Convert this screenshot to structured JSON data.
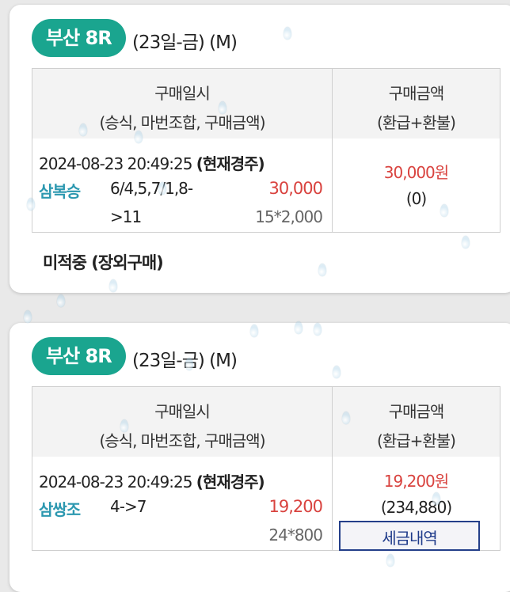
{
  "tickets": [
    {
      "race": "부산 8R",
      "race_info": "(23일-금) (M)",
      "header": {
        "col1_line1": "구매일시",
        "col1_line2": "(승식, 마번조합, 구매금액)",
        "col2_line1": "구매금액",
        "col2_line2": "(환급+환불)"
      },
      "datetime": "2024-08-23 20:49:25",
      "race_state": "(현재경주)",
      "bet_type": "삼복승",
      "combo_line1": "6/4,5,7/1,8-",
      "combo_line2": ">11",
      "bet_amount": "30,000",
      "unit": "15*2,000",
      "payout": "30,000원",
      "refund": "(0)",
      "status": "미적중 (장외구매)"
    },
    {
      "race": "부산 8R",
      "race_info": "(23일-금) (M)",
      "header": {
        "col1_line1": "구매일시",
        "col1_line2": "(승식, 마번조합, 구매금액)",
        "col2_line1": "구매금액",
        "col2_line2": "(환급+환불)"
      },
      "datetime": "2024-08-23 20:49:25",
      "race_state": "(현재경주)",
      "bet_type": "삼쌍조",
      "combo_line1": "4->7",
      "bet_amount": "19,200",
      "unit": "24*800",
      "payout": "19,200원",
      "refund": "(234,880)",
      "tax_button": "세금내역"
    }
  ],
  "colors": {
    "badge": "#1aa58f",
    "bet_type": "#2c98b0",
    "amount": "#d9433f",
    "tax_border": "#243f8a"
  }
}
